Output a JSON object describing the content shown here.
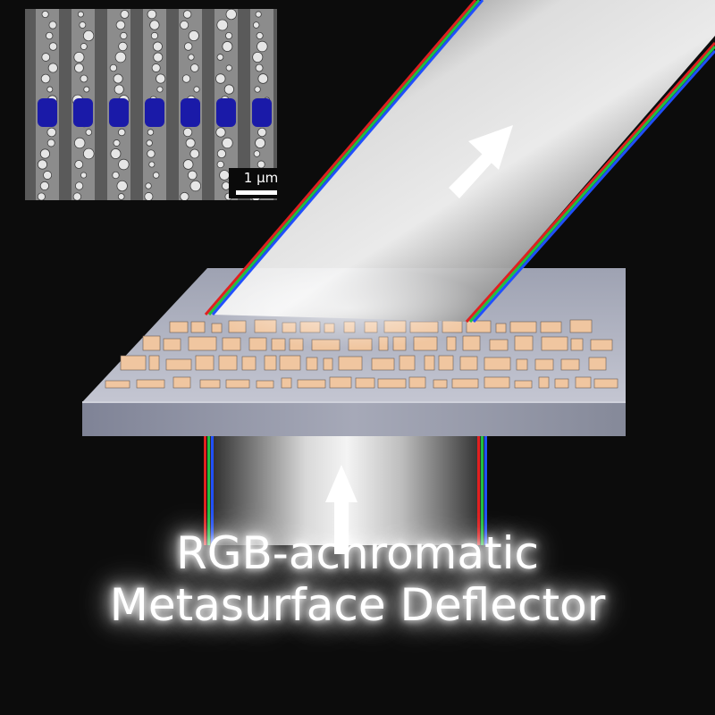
{
  "inset": {
    "scale_bar_label": "1 µm"
  },
  "caption": {
    "line1": "RGB-achromatic",
    "line2": "Metasurface Deflector"
  },
  "colors": {
    "background": "#0c0c0c",
    "substrate_top": "#b9bcc8",
    "substrate_side": "#8e92a3",
    "nanostructure": "#f0c6a0",
    "highlight_blue": "#1a1aa8",
    "beam_red": "#e02020",
    "beam_green": "#20c040",
    "beam_blue": "#2050ff"
  },
  "icons": [
    "up-arrow-icon",
    "diagonal-arrow-icon"
  ]
}
